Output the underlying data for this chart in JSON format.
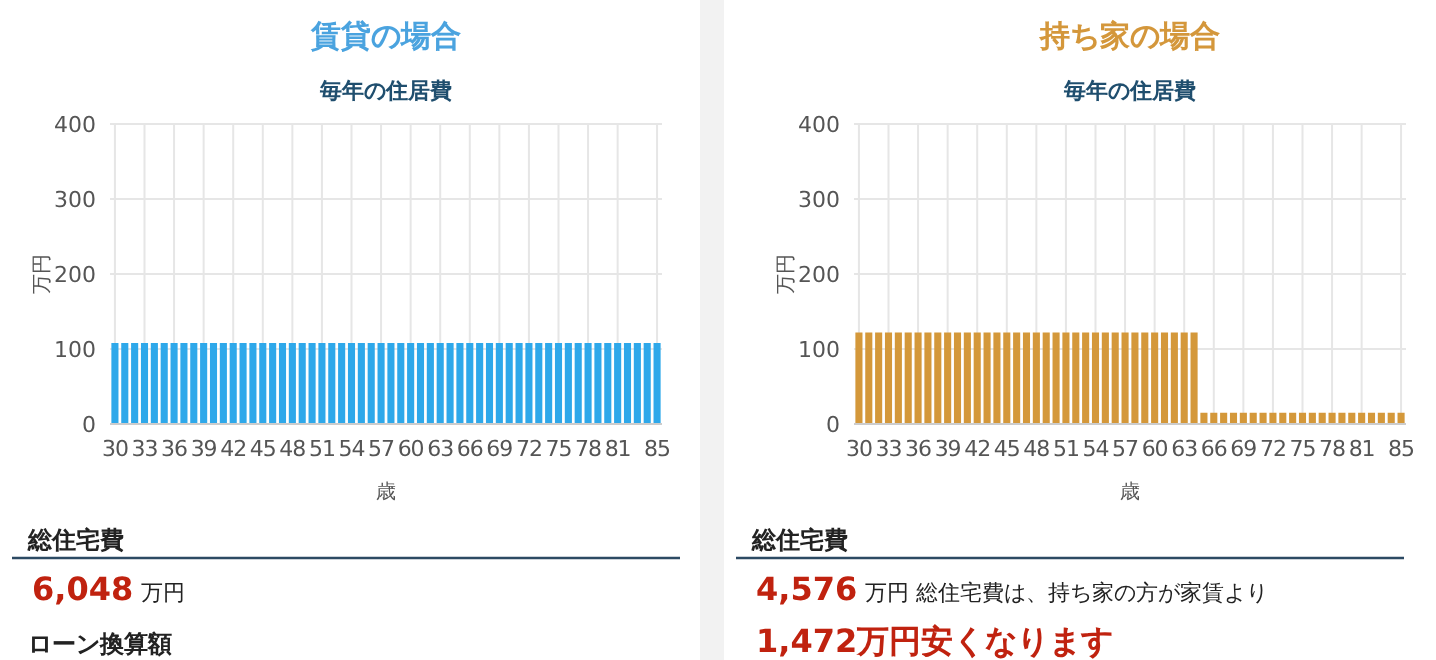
{
  "chart_data": [
    {
      "type": "bar",
      "title": "賃貸の場合",
      "subtitle": "毎年の住居費",
      "xlabel": "歳",
      "ylabel": "万円",
      "categories": [
        "30",
        null,
        null,
        "33",
        null,
        null,
        "36",
        null,
        null,
        "39",
        null,
        null,
        "42",
        null,
        null,
        "45",
        null,
        null,
        "48",
        null,
        null,
        "51",
        null,
        null,
        "54",
        null,
        null,
        "57",
        null,
        null,
        "60",
        null,
        null,
        "63",
        null,
        null,
        "66",
        null,
        null,
        "69",
        null,
        null,
        "72",
        null,
        null,
        "75",
        null,
        null,
        "78",
        null,
        null,
        "81",
        null,
        null,
        null,
        "85"
      ],
      "values": [
        108,
        108,
        108,
        108,
        108,
        108,
        108,
        108,
        108,
        108,
        108,
        108,
        108,
        108,
        108,
        108,
        108,
        108,
        108,
        108,
        108,
        108,
        108,
        108,
        108,
        108,
        108,
        108,
        108,
        108,
        108,
        108,
        108,
        108,
        108,
        108,
        108,
        108,
        108,
        108,
        108,
        108,
        108,
        108,
        108,
        108,
        108,
        108,
        108,
        108,
        108,
        108,
        108,
        108,
        108,
        108
      ],
      "color": "#2ea8ea",
      "ylim": [
        0,
        400
      ],
      "yticks": [
        0,
        100,
        200,
        300,
        400
      ],
      "grid": true,
      "annotations": [
        "総住宅費",
        "6,048",
        "万円",
        "ローン換算額"
      ]
    },
    {
      "type": "bar",
      "title": "持ち家の場合",
      "subtitle": "毎年の住居費",
      "xlabel": "歳",
      "ylabel": "万円",
      "categories": [
        "30",
        null,
        null,
        "33",
        null,
        null,
        "36",
        null,
        null,
        "39",
        null,
        null,
        "42",
        null,
        null,
        "45",
        null,
        null,
        "48",
        null,
        null,
        "51",
        null,
        null,
        "54",
        null,
        null,
        "57",
        null,
        null,
        "60",
        null,
        null,
        "63",
        null,
        null,
        "66",
        null,
        null,
        "69",
        null,
        null,
        "72",
        null,
        null,
        "75",
        null,
        null,
        "78",
        null,
        null,
        "81",
        null,
        null,
        null,
        "85"
      ],
      "values": [
        122,
        122,
        122,
        122,
        122,
        122,
        122,
        122,
        122,
        122,
        122,
        122,
        122,
        122,
        122,
        122,
        122,
        122,
        122,
        122,
        122,
        122,
        122,
        122,
        122,
        122,
        122,
        122,
        122,
        122,
        122,
        122,
        122,
        122,
        122,
        15,
        15,
        15,
        15,
        15,
        15,
        15,
        15,
        15,
        15,
        15,
        15,
        15,
        15,
        15,
        15,
        15,
        15,
        15,
        15,
        15
      ],
      "color": "#d4983a",
      "ylim": [
        0,
        400
      ],
      "yticks": [
        0,
        100,
        200,
        300,
        400
      ],
      "grid": true,
      "annotations": [
        "総住宅費",
        "4,576",
        "万円 総住宅費は、持ち家の方が家賃より",
        "1,472万円安くなります"
      ]
    }
  ]
}
